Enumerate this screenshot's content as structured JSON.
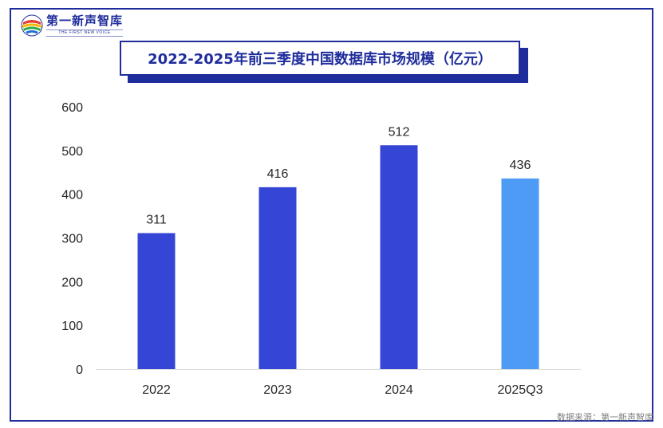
{
  "logo": {
    "name": "第一新声智库",
    "subtitle": "THE FIRST NEW VOICE"
  },
  "source_note": "数据来源：第一新声智库",
  "colors": {
    "frame": "#1f2d9c",
    "bar_main": "#3545d6",
    "bar_highlight": "#4d9bf5",
    "axis": "#d9d9d9",
    "text": "#262626"
  },
  "chart_data": {
    "type": "bar",
    "title": "2022-2025年前三季度中国数据库市场规模（亿元）",
    "categories": [
      "2022",
      "2023",
      "2024",
      "2025Q3"
    ],
    "values": [
      311,
      416,
      512,
      436
    ],
    "data_labels": [
      "311",
      "416",
      "512",
      "436"
    ],
    "highlight_index": 3,
    "ylim": [
      0,
      600
    ],
    "yticks": [
      0,
      100,
      200,
      300,
      400,
      500,
      600
    ],
    "ytick_labels": [
      "0",
      "100",
      "200",
      "300",
      "400",
      "500",
      "600"
    ],
    "xlabel": "",
    "ylabel": "",
    "grid": false,
    "legend": "none"
  }
}
